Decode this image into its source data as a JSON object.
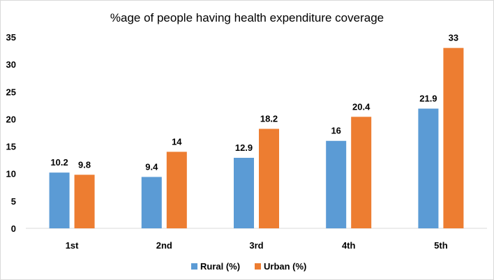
{
  "chart_data": {
    "type": "bar",
    "title": "%age of people having health expenditure coverage",
    "categories": [
      "1st",
      "2nd",
      "3rd",
      "4th",
      "5th"
    ],
    "series": [
      {
        "name": "Rural (%)",
        "values": [
          10.2,
          9.4,
          12.9,
          16,
          21.9
        ],
        "color": "#5b9bd5"
      },
      {
        "name": "Urban (%)",
        "values": [
          9.8,
          14,
          18.2,
          20.4,
          33
        ],
        "color": "#ed7d31"
      }
    ],
    "yticks": [
      "0",
      "5",
      "10",
      "15",
      "20",
      "25",
      "30",
      "35"
    ],
    "ylim": [
      0,
      35
    ],
    "legend_position": "bottom",
    "grid": false
  }
}
